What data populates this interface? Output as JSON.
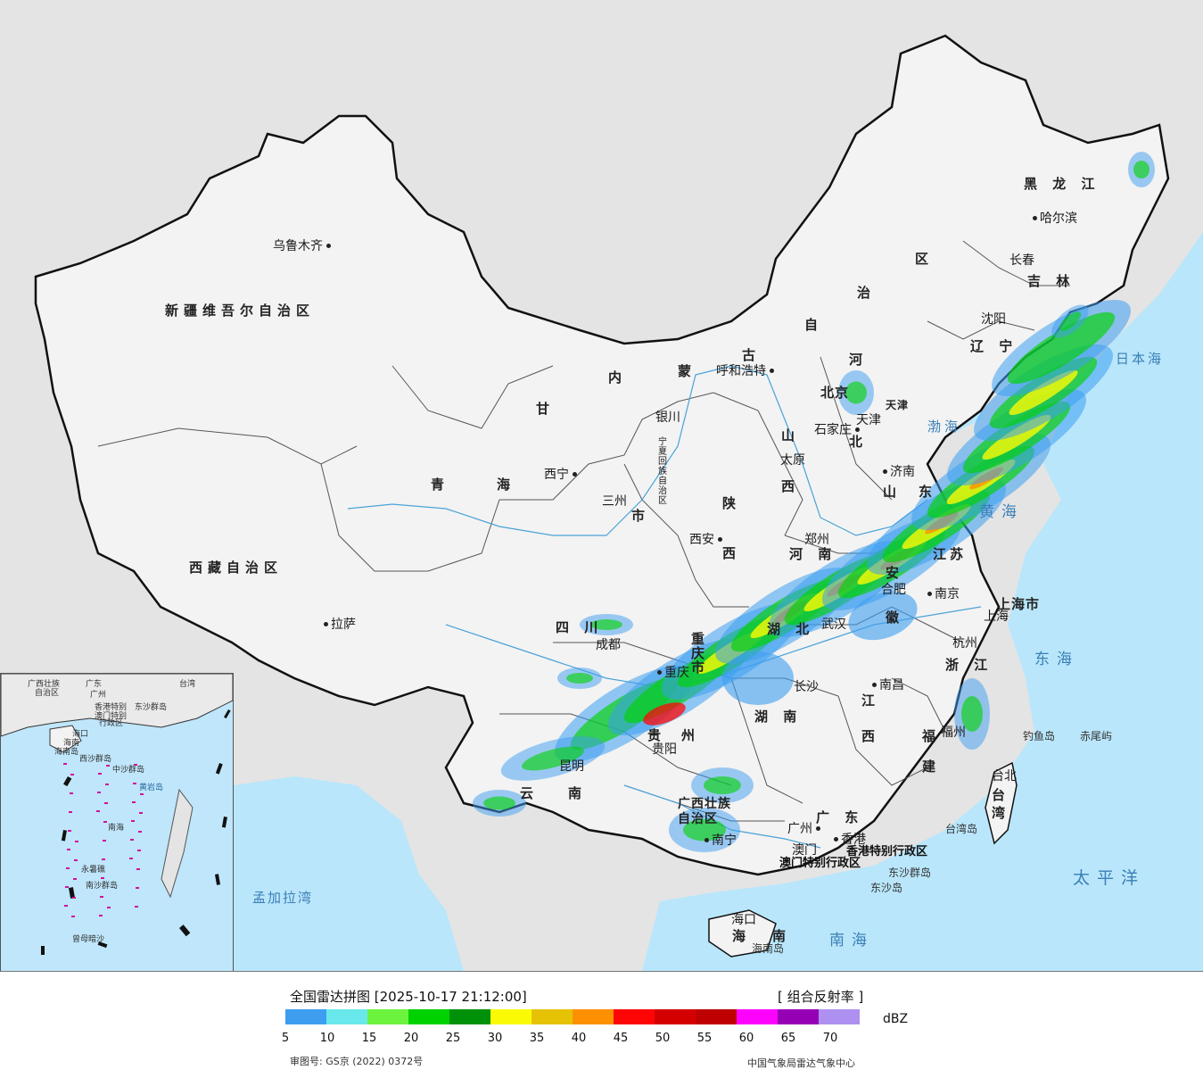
{
  "map": {
    "provinces": {
      "xinjiang": "新疆维吾尔自治区",
      "xizang": "西藏自治区",
      "qinghai_1": "青",
      "qinghai_2": "海",
      "gansu": "甘",
      "neimenggu_1": "内",
      "neimenggu_2": "蒙",
      "neimenggu_3": "古",
      "neimenggu_4": "自",
      "neimenggu_5": "治",
      "neimenggu_6": "区",
      "heilongjiang": "黑 龙 江",
      "jilin": "吉 林",
      "liaoning": "辽 宁",
      "hebei_1": "河",
      "hebei_2": "北",
      "shanxi_1": "山",
      "shanxi_2": "西",
      "shaanxi_1": "陕",
      "shaanxi_2": "西",
      "henan": "河 南",
      "shandong_1": "山",
      "shandong_2": "东",
      "jiangsu_1": "江",
      "jiangsu_2": "苏",
      "anhui_1": "安",
      "anhui_2": "徽",
      "hubei": "湖 北",
      "sichuan": "四 川",
      "chongqing_1": "重",
      "chongqing_2": "庆",
      "chongqing_3": "市",
      "guizhou_1": "贵",
      "guizhou_2": "州",
      "yunnan_1": "云",
      "yunnan_2": "南",
      "hunan": "湖 南",
      "jiangxi_1": "江",
      "jiangxi_2": "西",
      "zhejiang": "浙 江",
      "fujian_1": "福",
      "fujian_2": "建",
      "guangdong": "广 东",
      "guangxi": "广西壮族\n自治区",
      "hainan_1": "海",
      "hainan_2": "南",
      "taiwan_1": "台",
      "taiwan_2": "湾",
      "shanghai": "上海市",
      "gansu_2": "市",
      "ningxia": "宁夏回族自治区",
      "beijing": "北京",
      "tianjin": "天津"
    },
    "cities": {
      "urumqi": "乌鲁木齐",
      "lhasa": "拉萨",
      "xining": "西宁",
      "lanzhou": "三州",
      "yinchuan": "银川",
      "hohhot": "呼和浩特",
      "beijing": "北京",
      "tianjin": "天津",
      "shijiazhuang": "石家庄",
      "taiyuan": "太原",
      "jinan": "济南",
      "xian": "西安",
      "zhengzhou": "郑州",
      "hefei": "合肥",
      "nanjing": "南京",
      "shanghai": "上海",
      "hangzhou": "杭州",
      "wuhan": "武汉",
      "chengdu": "成都",
      "chongqing": "重庆",
      "guiyang": "贵阳",
      "kunming": "昆明",
      "changsha": "长沙",
      "nanchang": "南昌",
      "fuzhou": "福州",
      "taibei": "台北",
      "guangzhou": "广州",
      "nanning": "南宁",
      "haikou": "海口",
      "hongkong": "香港",
      "macau": "澳门",
      "shenyang": "沈阳",
      "changchun": "长春",
      "harbin": "哈尔滨"
    },
    "special_regions": {
      "hk_sar": "香港特别行政区",
      "macau_sar": "澳门特别行政区"
    },
    "islands": {
      "diaoyu": "钓鱼岛",
      "chiwei": "赤尾屿",
      "dongsha_islands": "东沙群岛",
      "dongsha_island": "东沙岛",
      "taiwan_island": "台湾岛",
      "hainan_island": "海南岛"
    },
    "seas": {
      "japan_sea": "日本海",
      "bohai": "渤海",
      "yellow_sea": "黄海",
      "east_sea": "东海",
      "pacific": "太平洋",
      "south_sea": "南海",
      "bay_of_bengal": "孟加拉湾"
    },
    "inset": {
      "labels": [
        "广西壮族",
        "自治区",
        "广东",
        "台湾",
        "广州",
        "香港特别",
        "澳门特别",
        "行政区",
        "东沙群岛",
        "海口",
        "海南",
        "西沙群岛",
        "中沙群岛",
        "黄岩岛",
        "南海",
        "永暑礁",
        "南沙群岛",
        "曾母暗沙",
        "海南岛"
      ]
    }
  },
  "legend": {
    "title": "全国雷达拼图 [2025-10-17 21:12:00]",
    "product": "[ 组合反射率 ]",
    "unit": "dBZ",
    "colors": [
      "#3d9ef0",
      "#69e8ec",
      "#6cf33e",
      "#00d200",
      "#00910a",
      "#fbfa06",
      "#e5c304",
      "#fc9002",
      "#fd0505",
      "#d40000",
      "#be0000",
      "#fd02fd",
      "#9600b4",
      "#ad90f0"
    ],
    "ticks": [
      "5",
      "10",
      "15",
      "20",
      "25",
      "30",
      "35",
      "40",
      "45",
      "50",
      "55",
      "60",
      "65",
      "70"
    ],
    "approval": "审图号: GS京 (2022) 0372号",
    "agency": "中国气象局雷达气象中心"
  }
}
